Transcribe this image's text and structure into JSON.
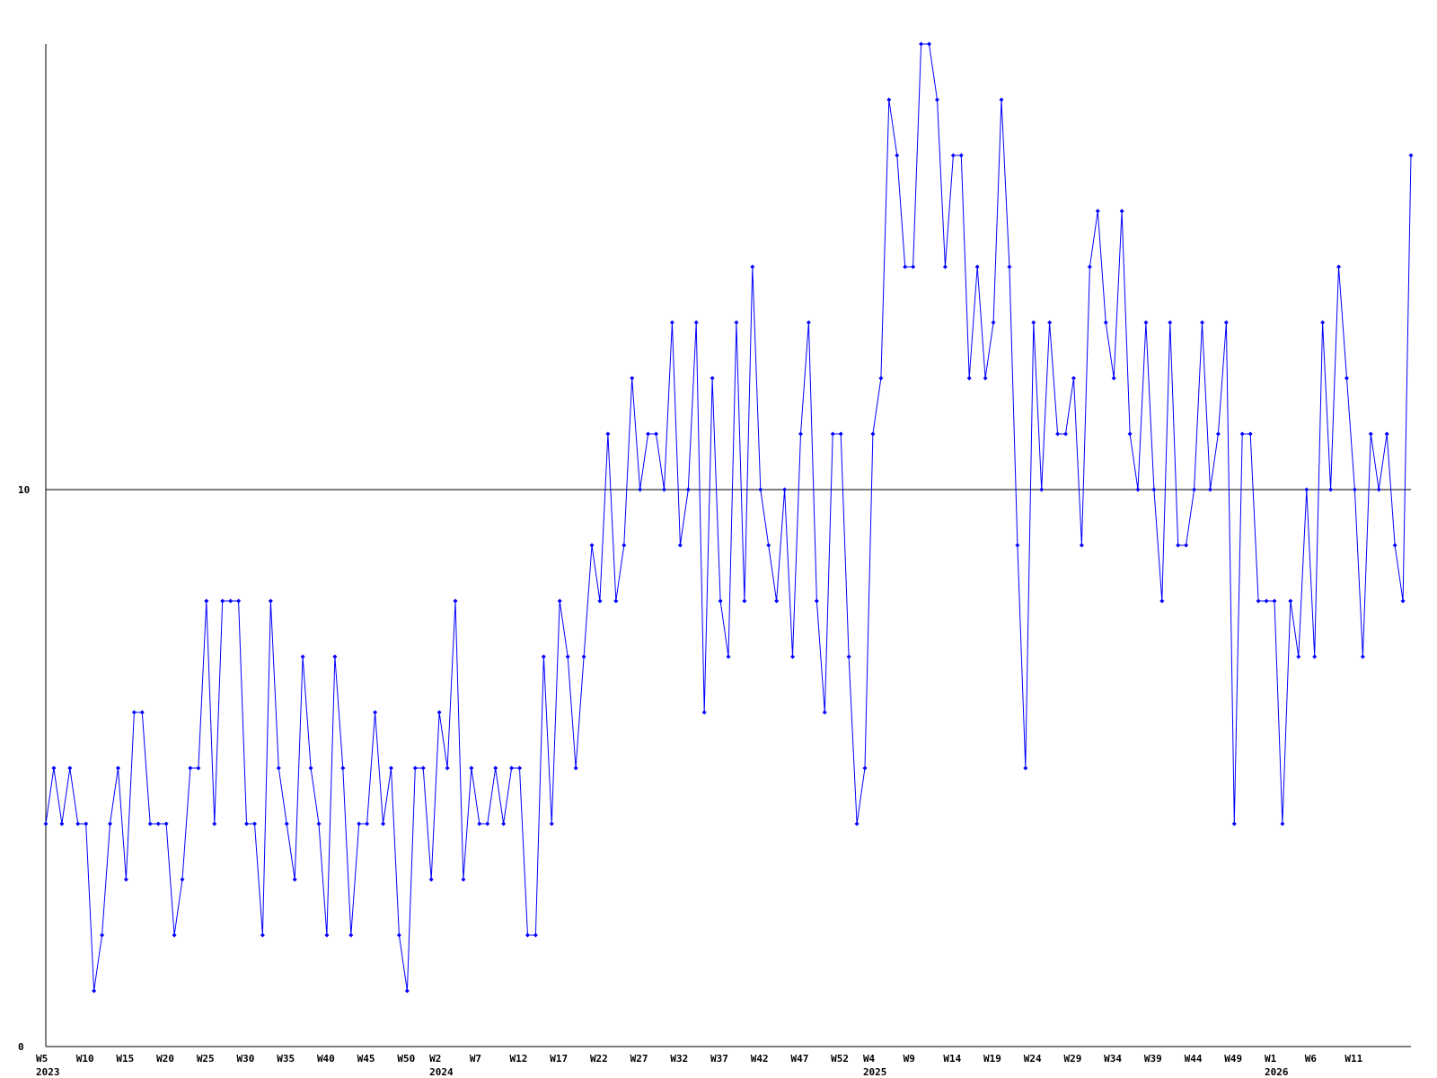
{
  "chart_data": {
    "type": "line",
    "categories": [
      "W5\n2023",
      null,
      null,
      null,
      null,
      "W10",
      null,
      null,
      null,
      null,
      "W15",
      null,
      null,
      null,
      null,
      "W20",
      null,
      null,
      null,
      null,
      "W25",
      null,
      null,
      null,
      null,
      "W30",
      null,
      null,
      null,
      null,
      "W35",
      null,
      null,
      null,
      null,
      "W40",
      null,
      null,
      null,
      null,
      "W45",
      null,
      null,
      null,
      null,
      "W50",
      null,
      null,
      null,
      "W2\n2024",
      null,
      null,
      null,
      null,
      "W7",
      null,
      null,
      null,
      null,
      "W12",
      null,
      null,
      null,
      null,
      "W17",
      null,
      null,
      null,
      null,
      "W22",
      null,
      null,
      null,
      null,
      "W27",
      null,
      null,
      null,
      null,
      "W32",
      null,
      null,
      null,
      null,
      "W37",
      null,
      null,
      null,
      null,
      "W42",
      null,
      null,
      null,
      null,
      "W47",
      null,
      null,
      null,
      null,
      "W52",
      null,
      null,
      null,
      "W4\n2025",
      null,
      null,
      null,
      null,
      "W9",
      null,
      null,
      null,
      null,
      "W14",
      null,
      null,
      null,
      null,
      "W19",
      null,
      null,
      null,
      null,
      "W24",
      null,
      null,
      null,
      null,
      "W29",
      null,
      null,
      null,
      null,
      "W34",
      null,
      null,
      null,
      null,
      "W39",
      null,
      null,
      null,
      null,
      "W44",
      null,
      null,
      null,
      null,
      "W49",
      null,
      null,
      null,
      null,
      "W1\n2026",
      null,
      null,
      null,
      null,
      "W6",
      null,
      null,
      null,
      null,
      "W11",
      null,
      null,
      null,
      null,
      null,
      null,
      null
    ],
    "series": [
      {
        "color": "#0000ff",
        "values": [
          4,
          5,
          4,
          5,
          4,
          4,
          1,
          2,
          4,
          5,
          3,
          6,
          6,
          4,
          4,
          4,
          2,
          3,
          5,
          5,
          8,
          4,
          8,
          8,
          8,
          4,
          4,
          2,
          8,
          5,
          4,
          3,
          7,
          5,
          4,
          2,
          7,
          5,
          2,
          4,
          4,
          6,
          4,
          5,
          2,
          1,
          5,
          5,
          3,
          6,
          5,
          8,
          3,
          5,
          4,
          4,
          5,
          4,
          5,
          5,
          2,
          2,
          7,
          4,
          8,
          7,
          5,
          7,
          9,
          8,
          11,
          8,
          9,
          12,
          10,
          11,
          11,
          10,
          13,
          9,
          10,
          13,
          6,
          12,
          8,
          7,
          13,
          8,
          14,
          10,
          9,
          8,
          10,
          7,
          11,
          13,
          8,
          6,
          11,
          11,
          7,
          4,
          5,
          11,
          12,
          17,
          16,
          14,
          14,
          18,
          18,
          17,
          14,
          16,
          16,
          12,
          14,
          12,
          13,
          17,
          14,
          9,
          5,
          13,
          10,
          13,
          11,
          11,
          12,
          9,
          14,
          15,
          13,
          12,
          15,
          11,
          10,
          13,
          10,
          8,
          13,
          9,
          9,
          10,
          13,
          10,
          11,
          13,
          4,
          11,
          11,
          8,
          8,
          8,
          4,
          8,
          7,
          10,
          7,
          13,
          10,
          14,
          12,
          10,
          7,
          11,
          10,
          11,
          9,
          8,
          16
        ]
      }
    ],
    "ylim": [
      0,
      18
    ],
    "yticks": [
      0,
      10
    ],
    "grid": true
  }
}
